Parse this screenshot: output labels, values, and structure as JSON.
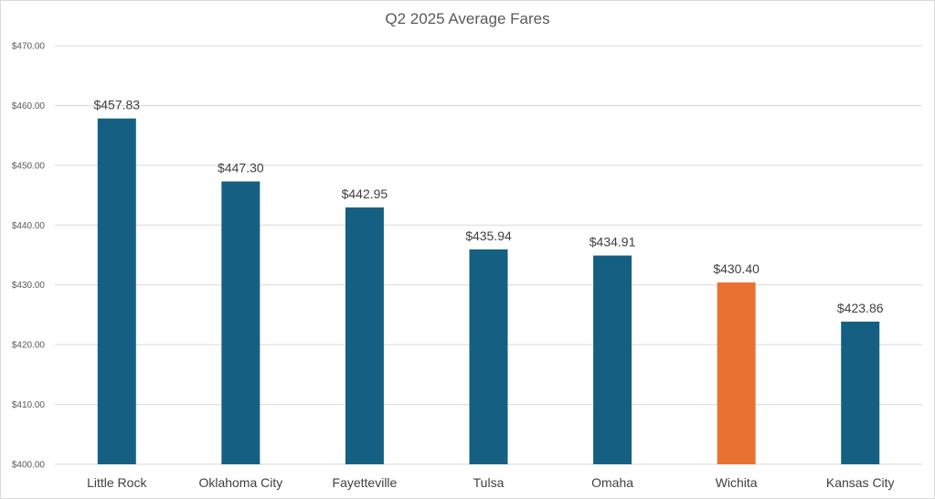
{
  "chart_data": {
    "type": "bar",
    "title": "Q2 2025 Average Fares",
    "categories": [
      "Little Rock",
      "Oklahoma City",
      "Fayetteville",
      "Tulsa",
      "Omaha",
      "Wichita",
      "Kansas City"
    ],
    "values": [
      457.83,
      447.3,
      442.95,
      435.94,
      434.91,
      430.4,
      423.86
    ],
    "data_labels": [
      "$457.83",
      "$447.30",
      "$442.95",
      "$435.94",
      "$434.91",
      "$430.40",
      "$423.86"
    ],
    "y_ticks": [
      400,
      410,
      420,
      430,
      440,
      450,
      460,
      470
    ],
    "y_tick_labels": [
      "$400.00",
      "$410.00",
      "$420.00",
      "$430.00",
      "$440.00",
      "$450.00",
      "$460.00",
      "$470.00"
    ],
    "ylim": [
      400,
      470
    ],
    "xlabel": "",
    "ylabel": "",
    "grid": true,
    "legend": "none",
    "colors": {
      "default_bar": "#156082",
      "highlight_bar": "#E97132",
      "gridline": "#d9d9d9"
    },
    "highlight_category": "Wichita"
  }
}
